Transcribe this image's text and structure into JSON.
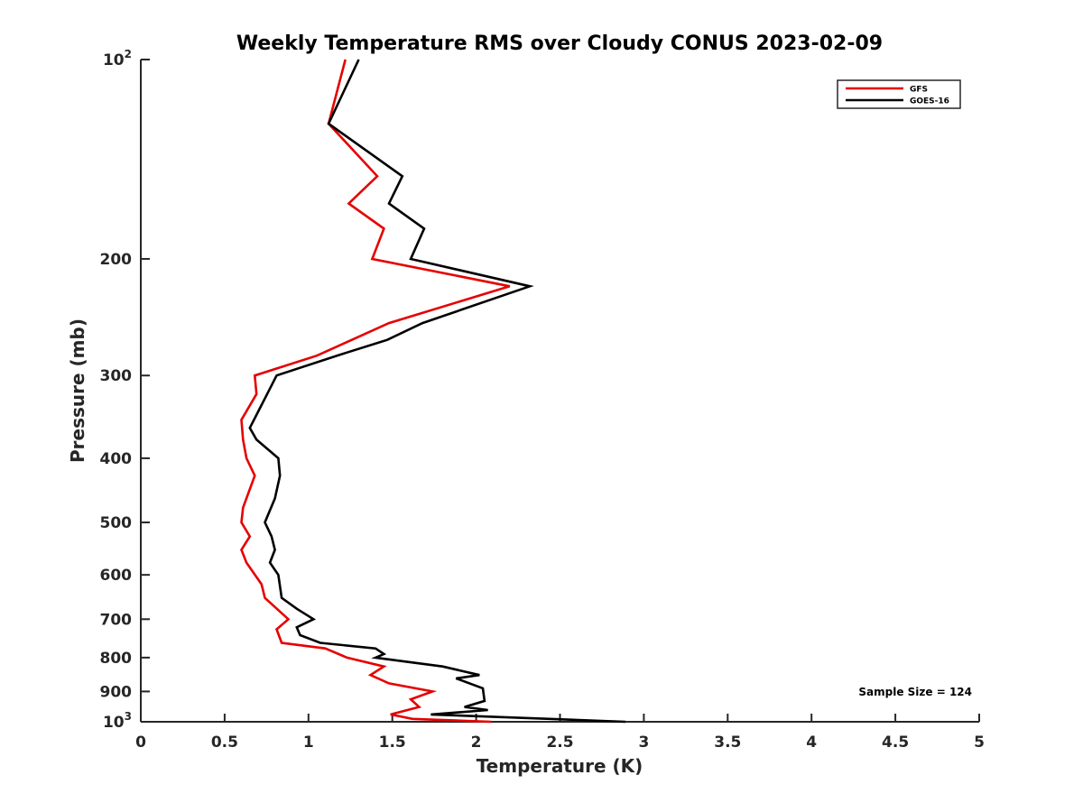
{
  "chart_data": {
    "type": "line",
    "title": "Weekly Temperature RMS over Cloudy CONUS 2023-02-09",
    "xlabel": "Temperature (K)",
    "ylabel": "Pressure (mb)",
    "xlim": [
      0,
      5
    ],
    "ylim": [
      100,
      1000
    ],
    "y_scale": "log",
    "y_reversed": true,
    "grid": false,
    "legend_position": "top-right",
    "x_ticks": [
      {
        "value": 0,
        "label": "0"
      },
      {
        "value": 0.5,
        "label": "0.5"
      },
      {
        "value": 1,
        "label": "1"
      },
      {
        "value": 1.5,
        "label": "1.5"
      },
      {
        "value": 2,
        "label": "2"
      },
      {
        "value": 2.5,
        "label": "2.5"
      },
      {
        "value": 3,
        "label": "3"
      },
      {
        "value": 3.5,
        "label": "3.5"
      },
      {
        "value": 4,
        "label": "4"
      },
      {
        "value": 4.5,
        "label": "4.5"
      },
      {
        "value": 5,
        "label": "5"
      }
    ],
    "y_ticks": [
      {
        "value": 100,
        "label": "10",
        "exp": "2"
      },
      {
        "value": 200,
        "label": "200"
      },
      {
        "value": 300,
        "label": "300"
      },
      {
        "value": 400,
        "label": "400"
      },
      {
        "value": 500,
        "label": "500"
      },
      {
        "value": 600,
        "label": "600"
      },
      {
        "value": 700,
        "label": "700"
      },
      {
        "value": 800,
        "label": "800"
      },
      {
        "value": 900,
        "label": "900"
      },
      {
        "value": 1000,
        "label": "10",
        "exp": "3"
      }
    ],
    "series": [
      {
        "name": "GFS",
        "color": "#e60000",
        "points": [
          [
            1.22,
            100
          ],
          [
            1.12,
            125
          ],
          [
            1.41,
            150
          ],
          [
            1.24,
            165
          ],
          [
            1.45,
            180
          ],
          [
            1.38,
            200
          ],
          [
            2.2,
            220
          ],
          [
            1.48,
            250
          ],
          [
            1.05,
            280
          ],
          [
            0.68,
            300
          ],
          [
            0.69,
            320
          ],
          [
            0.6,
            350
          ],
          [
            0.61,
            375
          ],
          [
            0.63,
            400
          ],
          [
            0.68,
            425
          ],
          [
            0.61,
            475
          ],
          [
            0.6,
            500
          ],
          [
            0.65,
            525
          ],
          [
            0.6,
            550
          ],
          [
            0.63,
            575
          ],
          [
            0.72,
            620
          ],
          [
            0.74,
            650
          ],
          [
            0.88,
            700
          ],
          [
            0.81,
            725
          ],
          [
            0.84,
            760
          ],
          [
            1.1,
            775
          ],
          [
            1.23,
            800
          ],
          [
            1.45,
            825
          ],
          [
            1.37,
            850
          ],
          [
            1.48,
            875
          ],
          [
            1.74,
            900
          ],
          [
            1.61,
            925
          ],
          [
            1.66,
            950
          ],
          [
            1.49,
            975
          ],
          [
            1.62,
            990
          ],
          [
            2.09,
            1000
          ]
        ]
      },
      {
        "name": "GOES-16",
        "color": "#000000",
        "points": [
          [
            1.3,
            100
          ],
          [
            1.12,
            125
          ],
          [
            1.56,
            150
          ],
          [
            1.48,
            165
          ],
          [
            1.69,
            180
          ],
          [
            1.61,
            200
          ],
          [
            2.32,
            220
          ],
          [
            1.68,
            250
          ],
          [
            1.47,
            265
          ],
          [
            1.17,
            280
          ],
          [
            0.81,
            300
          ],
          [
            0.74,
            325
          ],
          [
            0.7,
            340
          ],
          [
            0.65,
            360
          ],
          [
            0.69,
            375
          ],
          [
            0.82,
            400
          ],
          [
            0.83,
            425
          ],
          [
            0.8,
            460
          ],
          [
            0.74,
            500
          ],
          [
            0.78,
            525
          ],
          [
            0.8,
            550
          ],
          [
            0.77,
            575
          ],
          [
            0.82,
            600
          ],
          [
            0.84,
            650
          ],
          [
            0.93,
            675
          ],
          [
            1.03,
            700
          ],
          [
            0.93,
            720
          ],
          [
            0.95,
            740
          ],
          [
            1.07,
            760
          ],
          [
            1.4,
            775
          ],
          [
            1.45,
            790
          ],
          [
            1.4,
            800
          ],
          [
            1.8,
            825
          ],
          [
            2.02,
            850
          ],
          [
            1.88,
            860
          ],
          [
            2.04,
            890
          ],
          [
            2.05,
            930
          ],
          [
            1.93,
            950
          ],
          [
            2.07,
            960
          ],
          [
            1.73,
            975
          ],
          [
            2.89,
            1000
          ]
        ]
      }
    ],
    "annotations": [
      {
        "text": "Sample Size = 124",
        "position": "bottom-right"
      }
    ]
  }
}
